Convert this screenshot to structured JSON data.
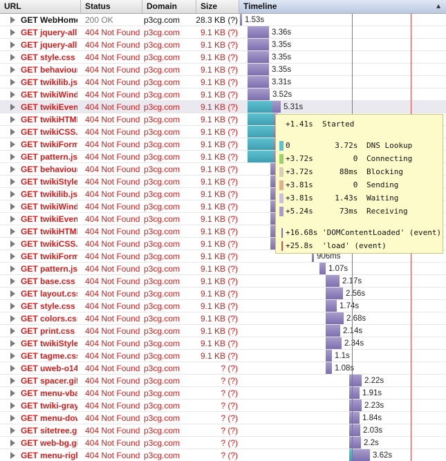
{
  "header": {
    "url": "URL",
    "status": "Status",
    "domain": "Domain",
    "size": "Size",
    "timeline": "Timeline",
    "sort_icon": "▲"
  },
  "colors": {
    "error_text": "#e01818",
    "receive_bar": "#a89ccb",
    "receive_bar_dark": "#7d6fb0",
    "dns_bar": "#5dc0cf",
    "domcontentloaded_line": "#6a74c8",
    "load_line": "#e04848",
    "tooltip_bg": "#fdfbc9"
  },
  "requests": [
    {
      "url": "GET WebHome",
      "status": "200 OK",
      "domain": "p3cg.com",
      "size": "28.3 KB (?)",
      "ok": true,
      "start": 0,
      "dns": 0,
      "recv": 3,
      "dur": "1.53s"
    },
    {
      "url": "GET jquery-all",
      "status": "404 Not Found",
      "domain": "p3cg.com",
      "size": "9.1 KB (?)",
      "ok": false,
      "start": 11,
      "dns": 0,
      "recv": 31,
      "dur": "3.36s"
    },
    {
      "url": "GET jquery-all",
      "status": "404 Not Found",
      "domain": "p3cg.com",
      "size": "9.1 KB (?)",
      "ok": false,
      "start": 11,
      "dns": 0,
      "recv": 31,
      "dur": "3.35s"
    },
    {
      "url": "GET style.css",
      "status": "404 Not Found",
      "domain": "p3cg.com",
      "size": "9.1 KB (?)",
      "ok": false,
      "start": 11,
      "dns": 0,
      "recv": 31,
      "dur": "3.35s"
    },
    {
      "url": "GET behaviour",
      "status": "404 Not Found",
      "domain": "p3cg.com",
      "size": "9.1 KB (?)",
      "ok": false,
      "start": 11,
      "dns": 0,
      "recv": 31,
      "dur": "3.35s"
    },
    {
      "url": "GET twikilib.js",
      "status": "404 Not Found",
      "domain": "p3cg.com",
      "size": "9.1 KB (?)",
      "ok": false,
      "start": 11,
      "dns": 0,
      "recv": 31,
      "dur": "3.31s"
    },
    {
      "url": "GET twikiWind",
      "status": "404 Not Found",
      "domain": "p3cg.com",
      "size": "9.1 KB (?)",
      "ok": false,
      "start": 11,
      "dns": 0,
      "recv": 32,
      "dur": "3.52s"
    },
    {
      "url": "GET twikiEvent",
      "status": "404 Not Found",
      "domain": "p3cg.com",
      "size": "9.1 KB (?)",
      "ok": false,
      "start": 11,
      "dns": 36,
      "recv": 12,
      "dur": "5.31s",
      "hl": true
    },
    {
      "url": "GET twikiHTML",
      "status": "404 Not Found",
      "domain": "p3cg.com",
      "size": "9.1 KB (?)",
      "ok": false,
      "start": 11,
      "dns": 38,
      "recv": 6,
      "dur": ""
    },
    {
      "url": "GET twikiCSS.js",
      "status": "404 Not Found",
      "domain": "p3cg.com",
      "size": "9.1 KB (?)",
      "ok": false,
      "start": 11,
      "dns": 38,
      "recv": 6,
      "dur": ""
    },
    {
      "url": "GET twikiForm",
      "status": "404 Not Found",
      "domain": "p3cg.com",
      "size": "9.1 KB (?)",
      "ok": false,
      "start": 11,
      "dns": 38,
      "recv": 6,
      "dur": ""
    },
    {
      "url": "GET pattern.js",
      "status": "404 Not Found",
      "domain": "p3cg.com",
      "size": "9.1 KB (?)",
      "ok": false,
      "start": 11,
      "dns": 38,
      "recv": 6,
      "dur": ""
    },
    {
      "url": "GET behaviour",
      "status": "404 Not Found",
      "domain": "p3cg.com",
      "size": "9.1 KB (?)",
      "ok": false,
      "start": 44,
      "dns": 0,
      "recv": 7,
      "dur": ""
    },
    {
      "url": "GET twikiStyle",
      "status": "404 Not Found",
      "domain": "p3cg.com",
      "size": "9.1 KB (?)",
      "ok": false,
      "start": 44,
      "dns": 0,
      "recv": 7,
      "dur": ""
    },
    {
      "url": "GET twikilib.js",
      "status": "404 Not Found",
      "domain": "p3cg.com",
      "size": "9.1 KB (?)",
      "ok": false,
      "start": 44,
      "dns": 0,
      "recv": 7,
      "dur": ""
    },
    {
      "url": "GET twikiWind",
      "status": "404 Not Found",
      "domain": "p3cg.com",
      "size": "9.1 KB (?)",
      "ok": false,
      "start": 44,
      "dns": 0,
      "recv": 7,
      "dur": ""
    },
    {
      "url": "GET twikiEvent",
      "status": "404 Not Found",
      "domain": "p3cg.com",
      "size": "9.1 KB (?)",
      "ok": false,
      "start": 44,
      "dns": 0,
      "recv": 7,
      "dur": ""
    },
    {
      "url": "GET twikiHTML",
      "status": "404 Not Found",
      "domain": "p3cg.com",
      "size": "9.1 KB (?)",
      "ok": false,
      "start": 44,
      "dns": 0,
      "recv": 7,
      "dur": ""
    },
    {
      "url": "GET twikiCSS.j",
      "status": "404 Not Found",
      "domain": "p3cg.com",
      "size": "9.1 KB (?)",
      "ok": false,
      "start": 44,
      "dns": 0,
      "recv": 7,
      "dur": ""
    },
    {
      "url": "GET twikiForm",
      "status": "404 Not Found",
      "domain": "p3cg.com",
      "size": "9.1 KB (?)",
      "ok": false,
      "start": 104,
      "dns": 0,
      "recv": 3,
      "dur": "906ms"
    },
    {
      "url": "GET pattern.js",
      "status": "404 Not Found",
      "domain": "p3cg.com",
      "size": "9.1 KB (?)",
      "ok": false,
      "start": 115,
      "dns": 0,
      "recv": 9,
      "dur": "1.07s"
    },
    {
      "url": "GET base.css",
      "status": "404 Not Found",
      "domain": "p3cg.com",
      "size": "9.1 KB (?)",
      "ok": false,
      "start": 124,
      "dns": 0,
      "recv": 20,
      "dur": "2.17s"
    },
    {
      "url": "GET layout.css",
      "status": "404 Not Found",
      "domain": "p3cg.com",
      "size": "9.1 KB (?)",
      "ok": false,
      "start": 124,
      "dns": 0,
      "recv": 25,
      "dur": "2.56s"
    },
    {
      "url": "GET style.css",
      "status": "404 Not Found",
      "domain": "p3cg.com",
      "size": "9.1 KB (?)",
      "ok": false,
      "start": 124,
      "dns": 0,
      "recv": 16,
      "dur": "1.74s"
    },
    {
      "url": "GET colors.css",
      "status": "404 Not Found",
      "domain": "p3cg.com",
      "size": "9.1 KB (?)",
      "ok": false,
      "start": 124,
      "dns": 0,
      "recv": 26,
      "dur": "2.68s"
    },
    {
      "url": "GET print.css",
      "status": "404 Not Found",
      "domain": "p3cg.com",
      "size": "9.1 KB (?)",
      "ok": false,
      "start": 124,
      "dns": 0,
      "recv": 21,
      "dur": "2.14s"
    },
    {
      "url": "GET twikiStyle",
      "status": "404 Not Found",
      "domain": "p3cg.com",
      "size": "9.1 KB (?)",
      "ok": false,
      "start": 124,
      "dns": 0,
      "recv": 23,
      "dur": "2.34s"
    },
    {
      "url": "GET tagme.css",
      "status": "404 Not Found",
      "domain": "p3cg.com",
      "size": "9.1 KB (?)",
      "ok": false,
      "start": 124,
      "dns": 0,
      "recv": 9,
      "dur": "1.1s"
    },
    {
      "url": "GET uweb-o14",
      "status": "404 Not Found",
      "domain": "p3cg.com",
      "size": "? (?)",
      "ok": false,
      "start": 124,
      "dns": 0,
      "recv": 9,
      "dur": "1.08s"
    },
    {
      "url": "GET spacer.gif",
      "status": "404 Not Found",
      "domain": "p3cg.com",
      "size": "? (?)",
      "ok": false,
      "start": 158,
      "dns": 0,
      "recv": 18,
      "dur": "2.22s"
    },
    {
      "url": "GET menu-vba",
      "status": "404 Not Found",
      "domain": "p3cg.com",
      "size": "? (?)",
      "ok": false,
      "start": 158,
      "dns": 0,
      "recv": 15,
      "dur": "1.91s"
    },
    {
      "url": "GET twiki-gray",
      "status": "404 Not Found",
      "domain": "p3cg.com",
      "size": "? (?)",
      "ok": false,
      "start": 158,
      "dns": 0,
      "recv": 18,
      "dur": "2.23s"
    },
    {
      "url": "GET menu-dow",
      "status": "404 Not Found",
      "domain": "p3cg.com",
      "size": "? (?)",
      "ok": false,
      "start": 158,
      "dns": 0,
      "recv": 15,
      "dur": "1.84s"
    },
    {
      "url": "GET sitetree.gi",
      "status": "404 Not Found",
      "domain": "p3cg.com",
      "size": "? (?)",
      "ok": false,
      "start": 158,
      "dns": 0,
      "recv": 16,
      "dur": "2.03s"
    },
    {
      "url": "GET web-bg.gi",
      "status": "404 Not Found",
      "domain": "p3cg.com",
      "size": "? (?)",
      "ok": false,
      "start": 158,
      "dns": 0,
      "recv": 17,
      "dur": "2.2s"
    },
    {
      "url": "GET menu-righ",
      "status": "404 Not Found",
      "domain": "p3cg.com",
      "size": "? (?)",
      "ok": false,
      "start": 158,
      "dns": 5,
      "recv": 25,
      "dur": "3.62s"
    }
  ],
  "tooltip": {
    "started": "+1.41s  Started",
    "phases": [
      {
        "offset": "0     ",
        "duration": "  3.72s",
        "label": "DNS Lookup",
        "color": "#5dc0cf"
      },
      {
        "offset": "+3.72s",
        "duration": "      0",
        "label": "Connecting",
        "color": "#9bd26a"
      },
      {
        "offset": "+3.72s",
        "duration": "   88ms",
        "label": "Blocking",
        "color": "#d9cfb4"
      },
      {
        "offset": "+3.81s",
        "duration": "      0",
        "label": "Sending",
        "color": "#e3b08f"
      },
      {
        "offset": "+3.81s",
        "duration": "  1.43s",
        "label": "Waiting",
        "color": "#c7c1dd"
      },
      {
        "offset": "+5.24s",
        "duration": "   73ms",
        "label": "Receiving",
        "color": "#a89ccb"
      }
    ],
    "events": [
      {
        "text": "+16.68s 'DOMContentLoaded' (event)",
        "color": "#6a74c8"
      },
      {
        "text": "+25.8s  'load' (event)",
        "color": "#e04848"
      }
    ]
  }
}
